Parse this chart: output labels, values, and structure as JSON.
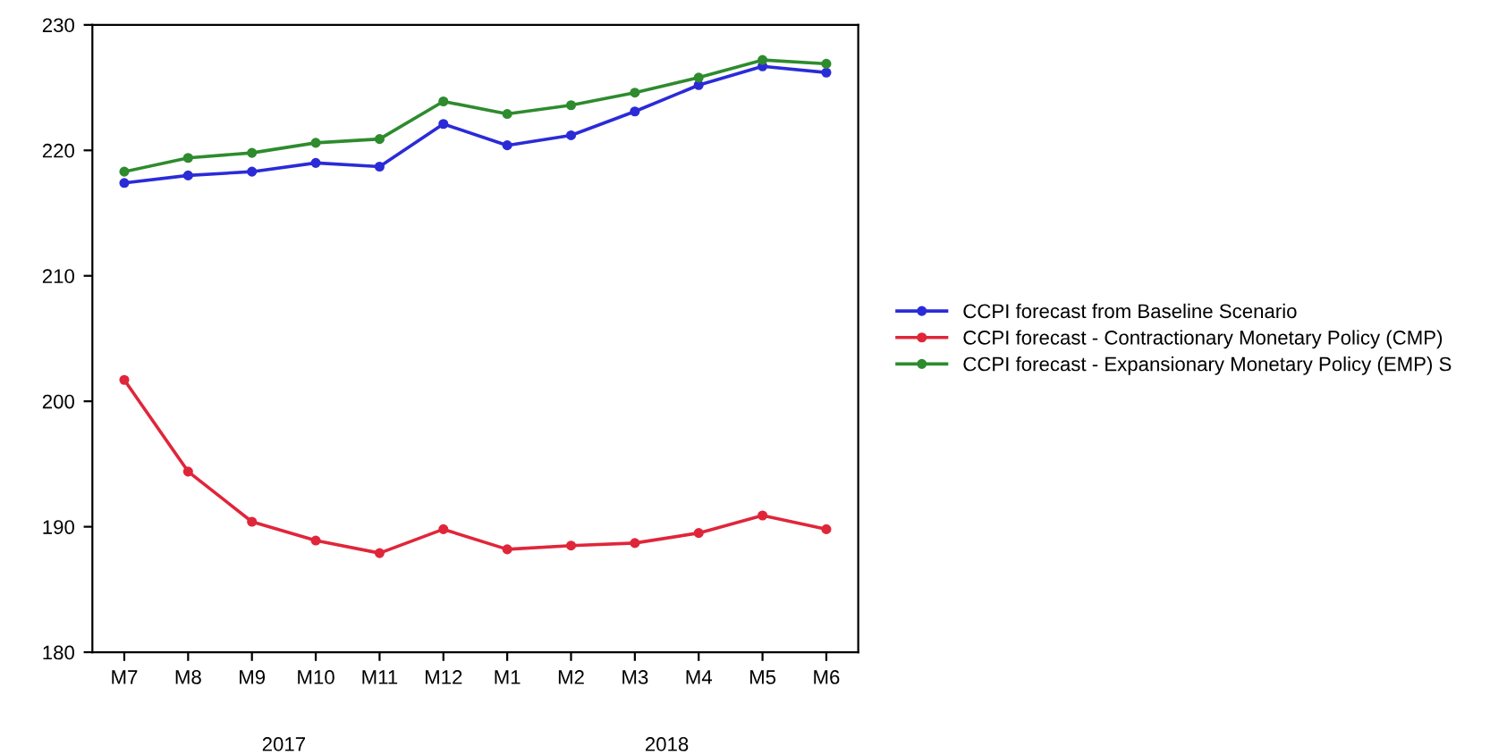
{
  "chart_data": {
    "type": "line",
    "categories": [
      "M7",
      "M8",
      "M9",
      "M10",
      "M11",
      "M12",
      "M1",
      "M2",
      "M3",
      "M4",
      "M5",
      "M6"
    ],
    "series": [
      {
        "name": "CCPI forecast from Baseline Scenario",
        "color": "#2b2bd8",
        "values": [
          217.4,
          218.0,
          218.3,
          219.0,
          218.7,
          222.1,
          220.4,
          221.2,
          223.1,
          225.2,
          226.7,
          226.2
        ]
      },
      {
        "name": "CCPI forecast - Contractionary Monetary Policy (CMP)",
        "color": "#e0263a",
        "values": [
          201.7,
          194.4,
          190.4,
          188.9,
          187.9,
          189.8,
          188.2,
          188.5,
          188.7,
          189.5,
          190.9,
          189.8
        ]
      },
      {
        "name": "CCPI forecast - Expansionary Monetary Policy (EMP) S",
        "color": "#2e8b2e",
        "values": [
          218.3,
          219.4,
          219.8,
          220.6,
          220.9,
          223.9,
          222.9,
          223.6,
          224.6,
          225.8,
          227.2,
          226.9
        ]
      }
    ],
    "ylim": [
      180,
      230
    ],
    "yticks": [
      180,
      190,
      200,
      210,
      220,
      230
    ],
    "annotations": [
      "2017",
      "2018"
    ],
    "legend": "right",
    "grid": false,
    "marker": "circle",
    "line_style": "solid"
  }
}
